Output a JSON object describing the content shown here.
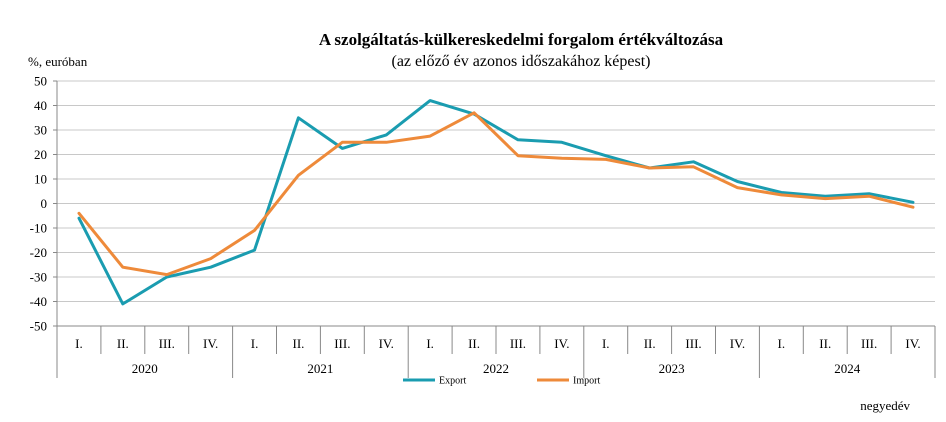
{
  "chart_data": {
    "type": "line",
    "title": "A szolgáltatás-külkereskedelmi forgalom értékváltozása",
    "subtitle": "(az előző év azonos időszakához képest)",
    "ylabel": "%, euróban",
    "xlabel": "negyedév",
    "ylim": [
      -50,
      50
    ],
    "yticks": [
      50,
      40,
      30,
      20,
      10,
      0,
      -10,
      -20,
      -30,
      -40,
      -50
    ],
    "grid": true,
    "legend_position": "bottom",
    "quarters": [
      "I.",
      "II.",
      "III.",
      "IV."
    ],
    "years": [
      "2020",
      "2021",
      "2022",
      "2023",
      "2024"
    ],
    "categories": [
      "2020 I.",
      "2020 II.",
      "2020 III.",
      "2020 IV.",
      "2021 I.",
      "2021 II.",
      "2021 III.",
      "2021 IV.",
      "2022 I.",
      "2022 II.",
      "2022 III.",
      "2022 IV.",
      "2023 I.",
      "2023 II.",
      "2023 III.",
      "2023 IV.",
      "2024 I.",
      "2024 II.",
      "2024 III.",
      "2024 IV."
    ],
    "series": [
      {
        "name": "Export",
        "color": "#1a9cb0",
        "values": [
          -6,
          -41,
          -30,
          -26,
          -19,
          35,
          22.5,
          28,
          42,
          36.5,
          26,
          25,
          19.5,
          14.5,
          17,
          9,
          4.5,
          3,
          4,
          0.5
        ]
      },
      {
        "name": "Import",
        "color": "#ee8a3a",
        "values": [
          -4,
          -26,
          -29,
          -22.5,
          -11,
          11.5,
          25,
          25,
          27.5,
          37,
          19.5,
          18.5,
          18,
          14.5,
          15,
          6.5,
          3.5,
          2,
          3,
          -1.5
        ]
      }
    ]
  }
}
